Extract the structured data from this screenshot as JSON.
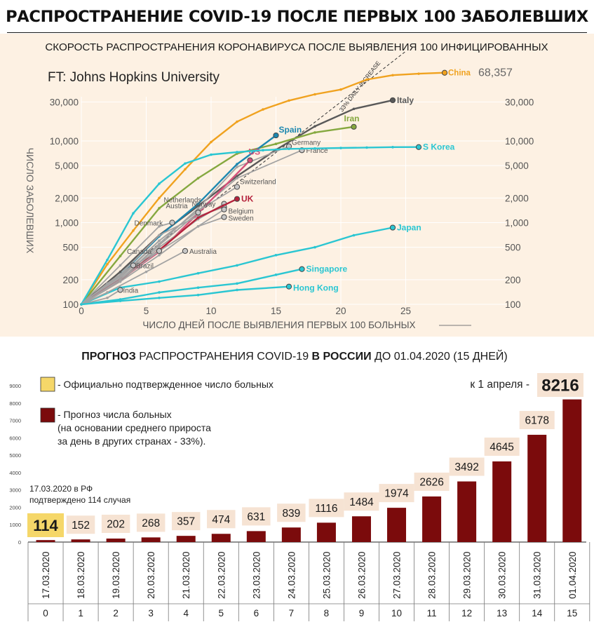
{
  "title": "РАСПРОСТРАНЕНИЕ COVID-19 ПОСЛЕ ПЕРВЫХ 100 ЗАБОЛЕВШИХ",
  "colors": {
    "upper_bg": "#fdf1e3",
    "bar_actual": "#f5d769",
    "bar_forecast": "#7b0b0c",
    "label_box": "#f6e3d3",
    "grid": "#ffffff"
  },
  "chart_data": [
    {
      "type": "line",
      "title": "СКОРОСТЬ РАСПРОСТРАНЕНИЯ КОРОНАВИРУСА ПОСЛЕ ВЫЯВЛЕНИЯ 100 ИНФИЦИРОВАННЫХ",
      "source": "FT: Johns Hopkins University",
      "xlabel": "ЧИСЛО ДНЕЙ ПОСЛЕ ВЫЯВЛЕНИЯ ПЕРВЫХ 100 БОЛЬНЫХ",
      "ylabel": "ЧИСЛО ЗАБОЛЕВШИХ",
      "xlim": [
        0,
        30
      ],
      "ylim": [
        100,
        60000
      ],
      "y_scale": "log",
      "xticks": [
        0,
        5,
        10,
        15,
        20,
        25
      ],
      "yticks": [
        100,
        200,
        500,
        1000,
        2000,
        5000,
        10000,
        30000
      ],
      "ytick_labels": [
        "100",
        "200",
        "500",
        "1,000",
        "2,000",
        "5,000",
        "10,000",
        "30,000"
      ],
      "grid": true,
      "reference_line": {
        "label": "33% DAILY INCREASE",
        "x": [
          0,
          25
        ],
        "y": [
          100,
          125000
        ]
      },
      "highlight_value": "68,357",
      "series": [
        {
          "name": "China",
          "color": "#f0a21f",
          "x": [
            0,
            2,
            4,
            6,
            8,
            10,
            12,
            14,
            16,
            18,
            20,
            22,
            24,
            26,
            28
          ],
          "y": [
            100,
            310,
            800,
            2000,
            4500,
            9700,
            17200,
            24300,
            31200,
            37200,
            42600,
            56400,
            63800,
            66500,
            68357
          ]
        },
        {
          "name": "Italy",
          "color": "#595959",
          "x": [
            0,
            3,
            6,
            9,
            12,
            15,
            18,
            21,
            24
          ],
          "y": [
            100,
            250,
            700,
            1600,
            3700,
            7800,
            15100,
            24700,
            31500
          ]
        },
        {
          "name": "Iran",
          "color": "#85a83f",
          "x": [
            0,
            3,
            6,
            9,
            12,
            15,
            18,
            21
          ],
          "y": [
            100,
            390,
            1500,
            3500,
            7000,
            9200,
            12700,
            14900
          ]
        },
        {
          "name": "Spain",
          "color": "#1d88b0",
          "x": [
            0,
            3,
            6,
            9,
            12,
            15
          ],
          "y": [
            100,
            230,
            680,
            1700,
            5200,
            11700
          ]
        },
        {
          "name": "Germany",
          "color": "#a3a3a3",
          "x": [
            0,
            3,
            6,
            9,
            12,
            16
          ],
          "y": [
            100,
            200,
            550,
            1500,
            4800,
            8600
          ]
        },
        {
          "name": "France",
          "color": "#a3a3a3",
          "x": [
            0,
            3,
            6,
            9,
            12,
            17
          ],
          "y": [
            100,
            210,
            600,
            1400,
            3500,
            7700
          ]
        },
        {
          "name": "US",
          "color": "#d4517a",
          "x": [
            0,
            3,
            6,
            9,
            13
          ],
          "y": [
            100,
            200,
            440,
            1300,
            5800
          ]
        },
        {
          "name": "S Korea",
          "color": "#2ac6d2",
          "x": [
            0,
            2,
            4,
            6,
            8,
            10,
            12,
            14,
            16,
            18,
            20,
            22,
            24,
            26
          ],
          "y": [
            100,
            350,
            1300,
            3000,
            5300,
            6800,
            7300,
            7700,
            8000,
            8100,
            8200,
            8300,
            8400,
            8413
          ]
        },
        {
          "name": "Switzerland",
          "color": "#a3a3a3",
          "x": [
            0,
            3,
            6,
            9,
            12
          ],
          "y": [
            100,
            220,
            600,
            1400,
            2740
          ]
        },
        {
          "name": "Netherlands",
          "color": "#a3a3a3",
          "x": [
            0,
            3,
            6,
            9,
            11
          ],
          "y": [
            100,
            190,
            500,
            1100,
            1700
          ]
        },
        {
          "name": "Norway",
          "color": "#a3a3a3",
          "x": [
            0,
            3,
            6,
            9,
            11
          ],
          "y": [
            100,
            230,
            700,
            1200,
            1550
          ]
        },
        {
          "name": "UK",
          "color": "#b5223b",
          "x": [
            0,
            3,
            6,
            9,
            12
          ],
          "y": [
            100,
            200,
            460,
            1150,
            1950
          ]
        },
        {
          "name": "Belgium",
          "color": "#a3a3a3",
          "x": [
            0,
            3,
            6,
            9,
            11
          ],
          "y": [
            100,
            190,
            400,
            900,
            1450
          ]
        },
        {
          "name": "Sweden",
          "color": "#a3a3a3",
          "x": [
            0,
            3,
            6,
            9,
            11
          ],
          "y": [
            100,
            200,
            450,
            900,
            1170
          ]
        },
        {
          "name": "Austria",
          "color": "#a3a3a3",
          "x": [
            0,
            3,
            6,
            9
          ],
          "y": [
            100,
            200,
            530,
            1330
          ]
        },
        {
          "name": "Denmark",
          "color": "#a3a3a3",
          "x": [
            0,
            3,
            6,
            7
          ],
          "y": [
            100,
            300,
            900,
            1000
          ]
        },
        {
          "name": "Japan",
          "color": "#2ac6d2",
          "x": [
            0,
            3,
            6,
            9,
            12,
            15,
            18,
            21,
            24
          ],
          "y": [
            100,
            160,
            190,
            240,
            300,
            400,
            500,
            700,
            870
          ]
        },
        {
          "name": "Canada",
          "color": "#a3a3a3",
          "x": [
            0,
            2,
            4,
            6
          ],
          "y": [
            100,
            180,
            300,
            450
          ]
        },
        {
          "name": "Australia",
          "color": "#a3a3a3",
          "x": [
            0,
            2,
            5,
            8
          ],
          "y": [
            100,
            140,
            250,
            450
          ]
        },
        {
          "name": "Brazil",
          "color": "#a3a3a3",
          "x": [
            0,
            2,
            4
          ],
          "y": [
            100,
            180,
            300
          ]
        },
        {
          "name": "Singapore",
          "color": "#2ac6d2",
          "x": [
            0,
            3,
            6,
            9,
            12,
            15,
            17
          ],
          "y": [
            100,
            115,
            140,
            160,
            180,
            230,
            270
          ]
        },
        {
          "name": "India",
          "color": "#a3a3a3",
          "x": [
            0,
            2,
            3
          ],
          "y": [
            100,
            120,
            150
          ]
        },
        {
          "name": "Hong Kong",
          "color": "#2ac6d2",
          "x": [
            0,
            3,
            6,
            9,
            12,
            16
          ],
          "y": [
            100,
            110,
            120,
            130,
            150,
            165
          ]
        }
      ]
    },
    {
      "type": "bar",
      "title_parts": [
        {
          "text": "ПРОГНОЗ",
          "bold": true
        },
        {
          "text": " РАСПРОСТРАНЕНИЯ COVID-19 ",
          "bold": false
        },
        {
          "text": "В РОССИИ",
          "bold": true
        },
        {
          "text": " ДО 01.04.2020 (15 ДНЕЙ)",
          "bold": false
        }
      ],
      "categories": [
        "17.03.2020",
        "18.03.2020",
        "19.03.2020",
        "20.03.2020",
        "21.03.2020",
        "22.03.2020",
        "23.03.2020",
        "24.03.2020",
        "25.03.2020",
        "26.03.2020",
        "27.03.2020",
        "28.03.2020",
        "29.03.2020",
        "30.03.2020",
        "31.03.2020",
        "01.04.2020"
      ],
      "day_numbers": [
        "0",
        "1",
        "2",
        "3",
        "4",
        "5",
        "6",
        "7",
        "8",
        "9",
        "10",
        "11",
        "12",
        "13",
        "14",
        "15"
      ],
      "values": [
        114,
        152,
        202,
        268,
        357,
        474,
        631,
        839,
        1116,
        1484,
        1974,
        2626,
        3492,
        4645,
        6178,
        8216
      ],
      "actual_count": 1,
      "ylim": [
        0,
        9000
      ],
      "yticks": [
        0,
        1000,
        2000,
        3000,
        4000,
        5000,
        6000,
        7000,
        8000,
        9000
      ],
      "legend": [
        {
          "label": "- Официально подтвержденное число больных",
          "color": "#f5d769"
        },
        {
          "label": "- Прогноз числа больных",
          "color": "#7b0b0c"
        }
      ],
      "legend_note": [
        "(на основании среднего прироста",
        "за день в других странах - 33%)."
      ],
      "annotation_lines": [
        "17.03.2020 в РФ",
        "подтверждено 114 случая"
      ],
      "callout_label": "к 1 апреля -",
      "callout_value": "8216"
    }
  ]
}
